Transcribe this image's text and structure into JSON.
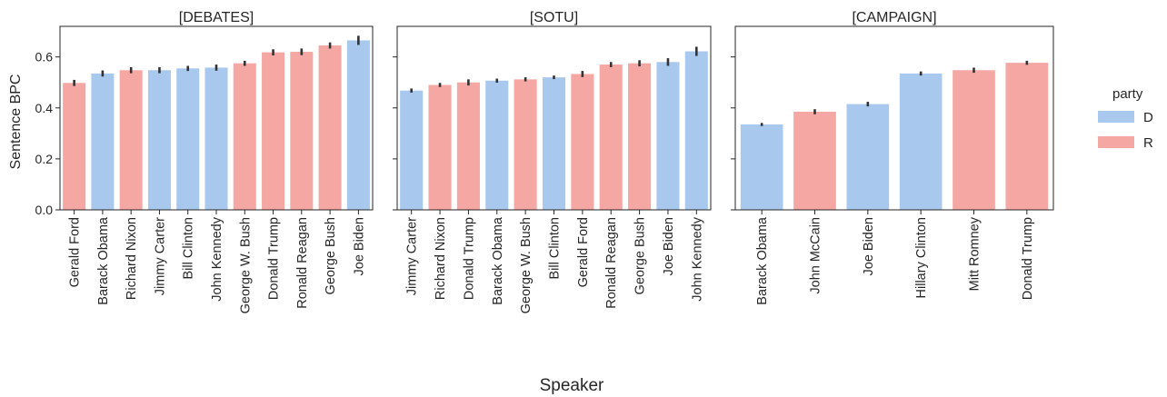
{
  "chart_data": {
    "type": "bar",
    "ylabel": "Sentence BPC",
    "xlabel": "Speaker",
    "ylim": [
      0,
      0.72
    ],
    "yticks": [
      "0.0",
      "0.2",
      "0.4",
      "0.6"
    ],
    "grid": false,
    "shared_y": true,
    "colors": {
      "D": "#a9c8ee",
      "R": "#f4a7a3",
      "errorbar": "#333333"
    },
    "legend": {
      "title": "party",
      "position": "right",
      "entries": [
        "D",
        "R"
      ]
    },
    "panels": [
      {
        "title": "[DEBATES]",
        "bars": [
          {
            "speaker": "Gerald Ford",
            "party": "R",
            "value": 0.498,
            "err": 0.012
          },
          {
            "speaker": "Barack Obama",
            "party": "D",
            "value": 0.535,
            "err": 0.012
          },
          {
            "speaker": "Richard Nixon",
            "party": "R",
            "value": 0.548,
            "err": 0.012
          },
          {
            "speaker": "Jimmy Carter",
            "party": "D",
            "value": 0.548,
            "err": 0.012
          },
          {
            "speaker": "Bill Clinton",
            "party": "D",
            "value": 0.555,
            "err": 0.01
          },
          {
            "speaker": "John Kennedy",
            "party": "D",
            "value": 0.558,
            "err": 0.012
          },
          {
            "speaker": "George W. Bush",
            "party": "R",
            "value": 0.575,
            "err": 0.01
          },
          {
            "speaker": "Donald Trump",
            "party": "R",
            "value": 0.618,
            "err": 0.012
          },
          {
            "speaker": "Ronald Reagan",
            "party": "R",
            "value": 0.62,
            "err": 0.013
          },
          {
            "speaker": "George Bush",
            "party": "R",
            "value": 0.645,
            "err": 0.012
          },
          {
            "speaker": "Joe Biden",
            "party": "D",
            "value": 0.665,
            "err": 0.018
          }
        ]
      },
      {
        "title": "[SOTU]",
        "bars": [
          {
            "speaker": "Jimmy Carter",
            "party": "D",
            "value": 0.468,
            "err": 0.008
          },
          {
            "speaker": "Richard Nixon",
            "party": "R",
            "value": 0.49,
            "err": 0.008
          },
          {
            "speaker": "Donald Trump",
            "party": "R",
            "value": 0.5,
            "err": 0.012
          },
          {
            "speaker": "Barack Obama",
            "party": "D",
            "value": 0.507,
            "err": 0.008
          },
          {
            "speaker": "George W. Bush",
            "party": "R",
            "value": 0.512,
            "err": 0.008
          },
          {
            "speaker": "Bill Clinton",
            "party": "D",
            "value": 0.52,
            "err": 0.007
          },
          {
            "speaker": "Gerald Ford",
            "party": "R",
            "value": 0.533,
            "err": 0.012
          },
          {
            "speaker": "Ronald Reagan",
            "party": "R",
            "value": 0.57,
            "err": 0.01
          },
          {
            "speaker": "George Bush",
            "party": "R",
            "value": 0.575,
            "err": 0.012
          },
          {
            "speaker": "Joe Biden",
            "party": "D",
            "value": 0.58,
            "err": 0.015
          },
          {
            "speaker": "John Kennedy",
            "party": "D",
            "value": 0.622,
            "err": 0.018
          }
        ]
      },
      {
        "title": "[CAMPAIGN]",
        "bars": [
          {
            "speaker": "Barack Obama",
            "party": "D",
            "value": 0.335,
            "err": 0.006
          },
          {
            "speaker": "John McCain",
            "party": "R",
            "value": 0.385,
            "err": 0.01
          },
          {
            "speaker": "Joe Biden",
            "party": "D",
            "value": 0.415,
            "err": 0.009
          },
          {
            "speaker": "Hillary Clinton",
            "party": "D",
            "value": 0.535,
            "err": 0.008
          },
          {
            "speaker": "Mitt Romney",
            "party": "R",
            "value": 0.548,
            "err": 0.01
          },
          {
            "speaker": "Donald Trump",
            "party": "R",
            "value": 0.577,
            "err": 0.008
          }
        ]
      }
    ]
  }
}
